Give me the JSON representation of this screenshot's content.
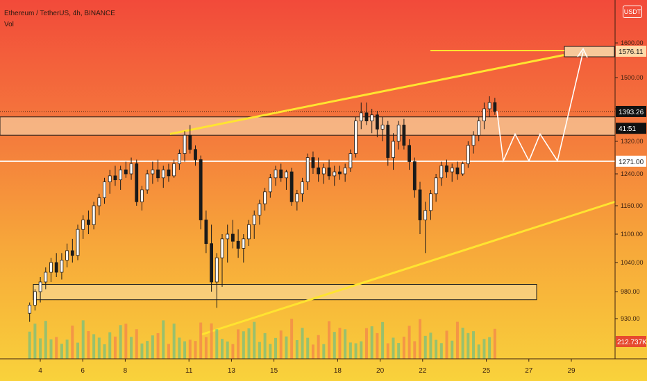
{
  "header": {
    "symbol_line": "Ethereum / TetherUS, 4h, BINANCE",
    "vol_label": "Vol"
  },
  "currency_button": "USDT",
  "price_axis": {
    "ticks": [
      "1600.00",
      "1500.00",
      "1400.00",
      "1320.00",
      "1240.00",
      "1160.00",
      "1100.00",
      "1040.00",
      "980.00",
      "930.00"
    ],
    "labels": {
      "target": "1576.11",
      "current": "1393.26",
      "countdown": "41:51",
      "support": "1271.00",
      "volume": "212.737K"
    }
  },
  "time_axis": {
    "ticks": [
      "4",
      "6",
      "8",
      "11",
      "13",
      "15",
      "18",
      "20",
      "22",
      "25",
      "27",
      "29"
    ]
  },
  "colors": {
    "bull": "#26a69a",
    "bear": "#ef5350",
    "trend": "#ffe430",
    "zone_fill": "#f7c89a",
    "zone_border": "#1a1a1a",
    "support_line": "#ffffff"
  },
  "chart_data": {
    "type": "candlestick",
    "symbol": "Ethereum / TetherUS",
    "interval": "4h",
    "exchange": "BINANCE",
    "ohlc_sequence": [
      [
        940,
        960,
        925,
        955
      ],
      [
        955,
        985,
        945,
        980
      ],
      [
        980,
        1010,
        960,
        1000
      ],
      [
        1000,
        1030,
        985,
        1020
      ],
      [
        1020,
        1050,
        1000,
        1040
      ],
      [
        1040,
        1060,
        1010,
        1020
      ],
      [
        1020,
        1060,
        1005,
        1045
      ],
      [
        1045,
        1080,
        1030,
        1065
      ],
      [
        1065,
        1090,
        1040,
        1055
      ],
      [
        1055,
        1120,
        1045,
        1110
      ],
      [
        1110,
        1140,
        1090,
        1130
      ],
      [
        1130,
        1150,
        1100,
        1120
      ],
      [
        1120,
        1170,
        1110,
        1160
      ],
      [
        1160,
        1190,
        1140,
        1180
      ],
      [
        1180,
        1230,
        1165,
        1220
      ],
      [
        1220,
        1250,
        1190,
        1235
      ],
      [
        1235,
        1260,
        1210,
        1225
      ],
      [
        1225,
        1260,
        1200,
        1250
      ],
      [
        1250,
        1270,
        1230,
        1240
      ],
      [
        1240,
        1280,
        1225,
        1265
      ],
      [
        1265,
        1275,
        1160,
        1170
      ],
      [
        1170,
        1210,
        1150,
        1200
      ],
      [
        1200,
        1250,
        1190,
        1240
      ],
      [
        1240,
        1270,
        1215,
        1250
      ],
      [
        1250,
        1275,
        1220,
        1230
      ],
      [
        1230,
        1260,
        1205,
        1250
      ],
      [
        1250,
        1265,
        1220,
        1235
      ],
      [
        1235,
        1275,
        1230,
        1265
      ],
      [
        1265,
        1300,
        1250,
        1290
      ],
      [
        1290,
        1345,
        1270,
        1335
      ],
      [
        1335,
        1360,
        1290,
        1300
      ],
      [
        1300,
        1310,
        1260,
        1275
      ],
      [
        1275,
        1285,
        1110,
        1130
      ],
      [
        1130,
        1150,
        1060,
        1080
      ],
      [
        1080,
        1120,
        980,
        1000
      ],
      [
        1000,
        1060,
        950,
        1050
      ],
      [
        1050,
        1100,
        990,
        1090
      ],
      [
        1090,
        1120,
        1040,
        1100
      ],
      [
        1100,
        1130,
        1070,
        1085
      ],
      [
        1085,
        1110,
        1050,
        1070
      ],
      [
        1070,
        1100,
        1040,
        1090
      ],
      [
        1090,
        1130,
        1075,
        1120
      ],
      [
        1120,
        1150,
        1090,
        1140
      ],
      [
        1140,
        1175,
        1120,
        1165
      ],
      [
        1165,
        1205,
        1150,
        1195
      ],
      [
        1195,
        1240,
        1180,
        1230
      ],
      [
        1230,
        1260,
        1210,
        1250
      ],
      [
        1250,
        1265,
        1220,
        1230
      ],
      [
        1230,
        1250,
        1200,
        1245
      ],
      [
        1245,
        1255,
        1160,
        1170
      ],
      [
        1170,
        1200,
        1150,
        1190
      ],
      [
        1190,
        1230,
        1170,
        1220
      ],
      [
        1220,
        1290,
        1200,
        1280
      ],
      [
        1280,
        1295,
        1240,
        1255
      ],
      [
        1255,
        1280,
        1220,
        1240
      ],
      [
        1240,
        1265,
        1215,
        1255
      ],
      [
        1255,
        1275,
        1225,
        1235
      ],
      [
        1235,
        1260,
        1210,
        1245
      ],
      [
        1245,
        1260,
        1225,
        1240
      ],
      [
        1240,
        1265,
        1220,
        1255
      ],
      [
        1255,
        1300,
        1245,
        1290
      ],
      [
        1290,
        1380,
        1280,
        1370
      ],
      [
        1370,
        1420,
        1350,
        1390
      ],
      [
        1390,
        1420,
        1360,
        1370
      ],
      [
        1370,
        1400,
        1340,
        1385
      ],
      [
        1385,
        1395,
        1330,
        1350
      ],
      [
        1350,
        1380,
        1320,
        1360
      ],
      [
        1360,
        1370,
        1260,
        1280
      ],
      [
        1280,
        1340,
        1250,
        1320
      ],
      [
        1320,
        1370,
        1300,
        1360
      ],
      [
        1360,
        1375,
        1300,
        1310
      ],
      [
        1310,
        1325,
        1250,
        1270
      ],
      [
        1270,
        1280,
        1180,
        1200
      ],
      [
        1200,
        1220,
        1100,
        1130
      ],
      [
        1130,
        1170,
        1060,
        1150
      ],
      [
        1150,
        1200,
        1130,
        1190
      ],
      [
        1190,
        1240,
        1170,
        1230
      ],
      [
        1230,
        1270,
        1210,
        1260
      ],
      [
        1260,
        1275,
        1230,
        1245
      ],
      [
        1245,
        1265,
        1220,
        1255
      ],
      [
        1255,
        1270,
        1225,
        1240
      ],
      [
        1240,
        1270,
        1235,
        1265
      ],
      [
        1265,
        1320,
        1255,
        1310
      ],
      [
        1310,
        1345,
        1290,
        1335
      ],
      [
        1335,
        1380,
        1320,
        1370
      ],
      [
        1370,
        1420,
        1350,
        1400
      ],
      [
        1400,
        1440,
        1380,
        1420
      ],
      [
        1420,
        1435,
        1385,
        1393.26
      ]
    ],
    "volume_last": "212.737K",
    "annotations": {
      "target_zone": [
        1560,
        1590
      ],
      "resistance_zone": [
        1335,
        1380
      ],
      "support_line": 1271,
      "demand_zone": [
        965,
        995
      ]
    },
    "xlim_days": [
      3.2,
      31
    ],
    "ylim": [
      880,
      1660
    ]
  }
}
